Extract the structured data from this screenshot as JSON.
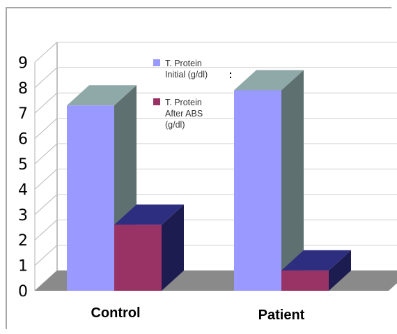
{
  "chart_data": {
    "type": "bar",
    "title": "",
    "xlabel": "",
    "ylabel": "",
    "categories": [
      "Control",
      "Patient"
    ],
    "series": [
      {
        "name": "T. Protein Initial (g/dl)",
        "values": [
          7.3,
          7.9
        ],
        "color": "#9999ff",
        "top_color": "#8fa8a8",
        "side_color": "#5e7070"
      },
      {
        "name": "T. Protein After ABS (g/dl)",
        "values": [
          2.6,
          0.8
        ],
        "color": "#993366",
        "top_color": "#2e2e80",
        "side_color": "#1c1c50"
      }
    ],
    "ylim": [
      0,
      9
    ],
    "yticks": [
      "0",
      "1",
      "2",
      "3",
      "4",
      "5",
      "6",
      "7",
      "8",
      "9"
    ],
    "grid": true,
    "legend": {
      "placement": "top-center",
      "entries": [
        {
          "lines": [
            "T. Protein",
            "Initial (g/dl)"
          ],
          "color": "#9999ff"
        },
        {
          "lines": [
            "T. Protein",
            "After ABS",
            "(g/dl)"
          ],
          "color": "#993366"
        }
      ]
    }
  }
}
